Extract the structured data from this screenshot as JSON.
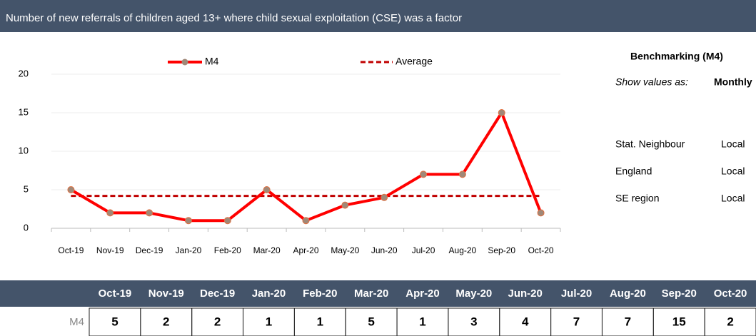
{
  "chart_data": {
    "type": "line",
    "title": "Number of new referrals of children aged 13+ where child sexual exploitation (CSE) was a factor",
    "categories": [
      "Oct-19",
      "Nov-19",
      "Dec-19",
      "Jan-20",
      "Feb-20",
      "Mar-20",
      "Apr-20",
      "May-20",
      "Jun-20",
      "Jul-20",
      "Aug-20",
      "Sep-20",
      "Oct-20"
    ],
    "series": [
      {
        "name": "M4",
        "color": "#ff0000",
        "marker_color": "#a08878",
        "values": [
          5,
          2,
          2,
          1,
          1,
          5,
          1,
          3,
          4,
          7,
          7,
          15,
          2
        ]
      }
    ],
    "reference_line": {
      "name": "Average",
      "color": "#c00000",
      "value": 4.2
    },
    "ylim": [
      0,
      20
    ],
    "yticks": [
      0,
      5,
      10,
      15,
      20
    ],
    "grid": true,
    "legend": "top"
  },
  "benchmark": {
    "title": "Benchmarking (M4)",
    "show_label": "Show values as:",
    "show_value": "Monthly",
    "rows": [
      [
        "Stat. Neighbour",
        "Local"
      ],
      [
        "England",
        "Local"
      ],
      [
        "SE region",
        "Local"
      ]
    ]
  },
  "table": {
    "row_label": "M4"
  }
}
